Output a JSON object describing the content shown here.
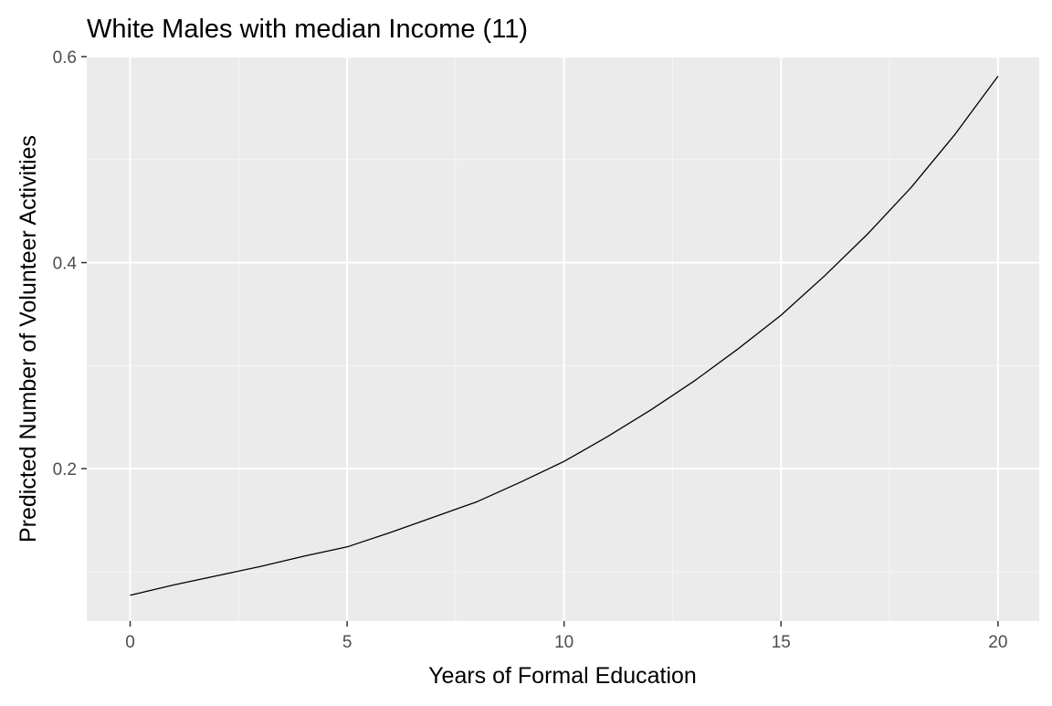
{
  "chart_data": {
    "type": "line",
    "title": "White Males with median Income (11)",
    "xlabel": "Years of Formal Education",
    "ylabel": "Predicted Number of Volunteer Activities",
    "xlim": [
      -1,
      20.95
    ],
    "ylim": [
      0.052,
      0.6
    ],
    "x_ticks": [
      0,
      5,
      10,
      15,
      20
    ],
    "x_tick_labels": [
      "0",
      "5",
      "10",
      "15",
      "20"
    ],
    "y_ticks": [
      0.2,
      0.4,
      0.6
    ],
    "y_tick_labels": [
      "0.2",
      "0.4",
      "0.6"
    ],
    "x_minor_ticks": [
      2.5,
      7.5,
      12.5,
      17.5
    ],
    "y_minor_ticks": [
      0.1,
      0.3,
      0.5
    ],
    "grid": true,
    "series": [
      {
        "x": [
          0,
          1,
          2,
          3,
          4,
          5,
          6,
          7,
          8,
          9,
          10,
          11,
          12,
          13,
          14,
          15,
          16,
          17,
          18,
          19,
          20
        ],
        "y": [
          0.077,
          0.087,
          0.096,
          0.105,
          0.115,
          0.124,
          0.138,
          0.153,
          0.168,
          0.187,
          0.207,
          0.231,
          0.257,
          0.285,
          0.316,
          0.349,
          0.387,
          0.428,
          0.473,
          0.524,
          0.581
        ]
      }
    ],
    "colors": {
      "panel": "#ebebeb",
      "grid_major": "#ffffff",
      "grid_minor": "#f5f5f5",
      "line": "#000000",
      "tick": "#333333",
      "tick_label": "#4d4d4d"
    }
  }
}
